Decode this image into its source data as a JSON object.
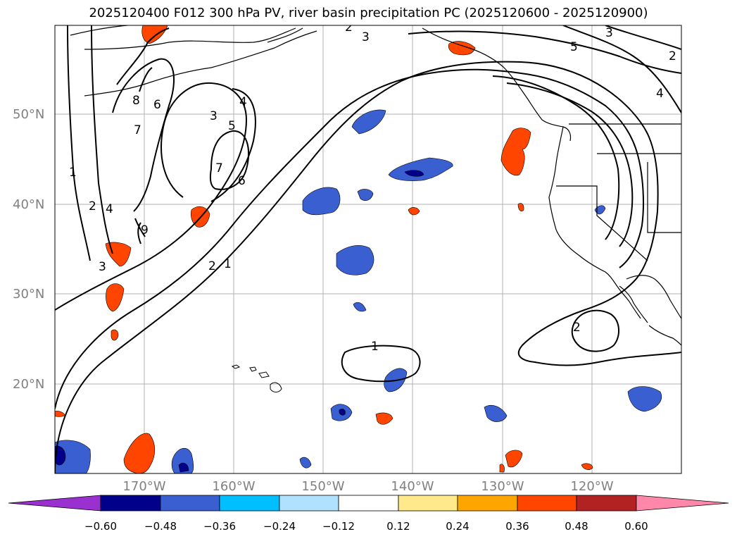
{
  "title": "2025120400 F012 300 hPa PV, river basin precipitation PC (2025120600 - 2025120900)",
  "lat_labels": [
    "50°N",
    "40°N",
    "30°N",
    "20°N"
  ],
  "lon_labels": [
    "170°W",
    "160°W",
    "150°W",
    "140°W",
    "130°W",
    "120°W"
  ],
  "contour_labels": [
    "1",
    "2",
    "3",
    "4",
    "5",
    "6",
    "7",
    "8",
    "9"
  ],
  "colorbar": {
    "tick_labels": [
      "−0.60",
      "−0.48",
      "−0.36",
      "−0.24",
      "−0.12",
      "0.12",
      "0.24",
      "0.36",
      "0.48",
      "0.60"
    ],
    "colors": [
      "#9b30d0",
      "#00008b",
      "#3a5fd0",
      "#00bfff",
      "#b0e2ff",
      "#ffffff",
      "#ffe98a",
      "#ffa500",
      "#ff4500",
      "#b22222",
      "#ff88aa"
    ]
  },
  "legend_colors": {
    "neg_strong": "#00008b",
    "neg_mid": "#3a5fd0",
    "neg_light": "#00bfff",
    "pos_light": "#ffa500",
    "pos_mid": "#ff4500"
  }
}
